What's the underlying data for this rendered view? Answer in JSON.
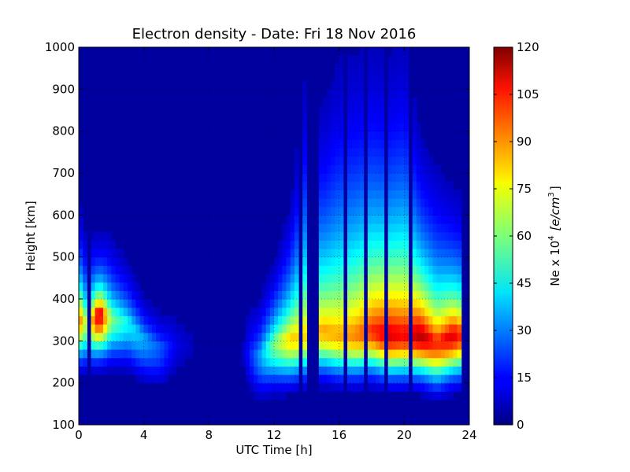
{
  "chart_data": {
    "type": "heatmap",
    "title": "Electron density - Date: Fri 18 Nov 2016",
    "xlabel": "UTC Time [h]",
    "ylabel": "Height [km]",
    "xlim": [
      0,
      24
    ],
    "ylim": [
      100,
      1000
    ],
    "x_ticks": [
      0,
      4,
      8,
      12,
      16,
      20,
      24
    ],
    "y_ticks": [
      100,
      200,
      300,
      400,
      500,
      600,
      700,
      800,
      900,
      1000
    ],
    "grid": true,
    "colormap": "jet",
    "colorbar": {
      "label_prefix": "Ne x 10",
      "label_exponent": "4",
      "label_units": "[e/cm",
      "label_units_exponent": "3",
      "label_units_close": "]",
      "range": [
        0,
        120
      ],
      "ticks": [
        0,
        15,
        30,
        45,
        60,
        75,
        90,
        105,
        120
      ]
    },
    "data_x_range": [
      0,
      23.5
    ],
    "data_points": [
      {
        "t": 0.0,
        "peak_height": 360,
        "peak_value": 95,
        "top_height": 600
      },
      {
        "t": 0.5,
        "peak_height": 350,
        "peak_value": 60,
        "top_height": 550
      },
      {
        "t": 1.25,
        "peak_height": 370,
        "peak_value": 115,
        "top_height": 520
      },
      {
        "t": 2.0,
        "peak_height": 360,
        "peak_value": 60,
        "top_height": 560
      },
      {
        "t": 3.0,
        "peak_height": 350,
        "peak_value": 45,
        "top_height": 520
      },
      {
        "t": 4.0,
        "peak_height": 310,
        "peak_value": 35,
        "top_height": 450
      },
      {
        "t": 5.0,
        "peak_height": 290,
        "peak_value": 25,
        "top_height": 400
      },
      {
        "t": 6.0,
        "peak_height": 300,
        "peak_value": 12,
        "top_height": 500
      },
      {
        "t": 8.0,
        "peak_height": 300,
        "peak_value": 3,
        "top_height": 500
      },
      {
        "t": 10.0,
        "peak_height": 280,
        "peak_value": 6,
        "top_height": 600
      },
      {
        "t": 11.0,
        "peak_height": 270,
        "peak_value": 30,
        "top_height": 450
      },
      {
        "t": 12.0,
        "peak_height": 300,
        "peak_value": 60,
        "top_height": 500
      },
      {
        "t": 13.0,
        "peak_height": 310,
        "peak_value": 80,
        "top_height": 600
      },
      {
        "t": 14.0,
        "peak_height": 320,
        "peak_value": 80,
        "top_height": 900
      },
      {
        "t": 15.0,
        "peak_height": 330,
        "peak_value": 85,
        "top_height": 800
      },
      {
        "t": 16.0,
        "peak_height": 320,
        "peak_value": 85,
        "top_height": 900
      },
      {
        "t": 17.0,
        "peak_height": 320,
        "peak_value": 90,
        "top_height": 900
      },
      {
        "t": 18.0,
        "peak_height": 330,
        "peak_value": 100,
        "top_height": 900
      },
      {
        "t": 19.0,
        "peak_height": 320,
        "peak_value": 110,
        "top_height": 850
      },
      {
        "t": 20.0,
        "peak_height": 320,
        "peak_value": 105,
        "top_height": 900
      },
      {
        "t": 21.0,
        "peak_height": 320,
        "peak_value": 115,
        "top_height": 700
      },
      {
        "t": 22.0,
        "peak_height": 300,
        "peak_value": 100,
        "top_height": 650
      },
      {
        "t": 23.0,
        "peak_height": 320,
        "peak_value": 110,
        "top_height": 600
      },
      {
        "t": 23.5,
        "peak_height": 320,
        "peak_value": 100,
        "top_height": 600
      }
    ],
    "gaps": [
      0.6,
      13.7,
      14.1,
      14.5,
      16.4,
      17.6,
      18.8,
      20.3
    ],
    "notes_colors": {
      "background": "#ffffff",
      "low": "#00007f",
      "high": "#800000"
    }
  }
}
